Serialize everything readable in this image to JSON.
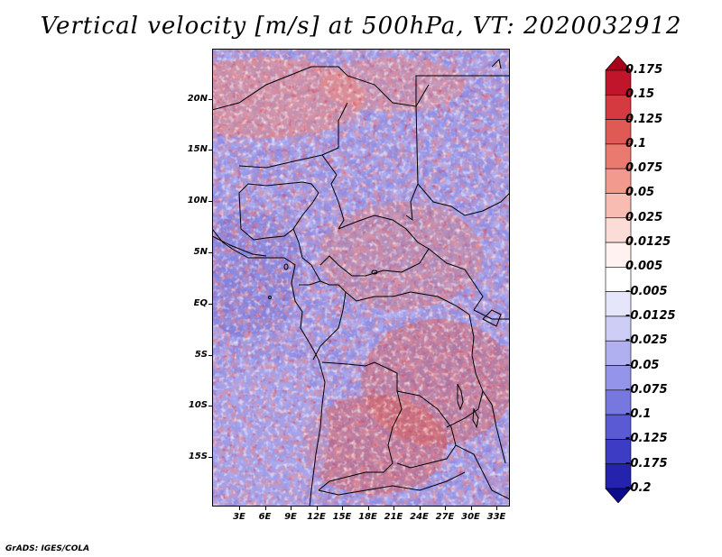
{
  "title": "Vertical velocity [m/s] at 500hPa, VT: 2020032912",
  "credit": "GrADS: IGES/COLA",
  "lat_labels": [
    "20N",
    "15N",
    "10N",
    "5N",
    "EQ",
    "5S",
    "10S",
    "15S"
  ],
  "lon_labels": [
    "3E",
    "6E",
    "9E",
    "12E",
    "15E",
    "18E",
    "21E",
    "24E",
    "27E",
    "30E",
    "33E"
  ],
  "colorbar": {
    "labels": [
      "0.175",
      "0.15",
      "0.125",
      "0.1",
      "0.075",
      "0.05",
      "0.025",
      "0.0125",
      "0.005",
      "-0.005",
      "-0.0125",
      "-0.025",
      "-0.05",
      "-0.075",
      "-0.1",
      "-0.125",
      "-0.175",
      "-0.2"
    ],
    "colors": [
      "#a6001a",
      "#c0152b",
      "#d43a3f",
      "#e05a55",
      "#ea7a70",
      "#f29a8e",
      "#f8bcb2",
      "#fcdcd6",
      "#fff2f0",
      "#ffffff",
      "#e6e6fb",
      "#cdcdf6",
      "#b0b0f0",
      "#9494ea",
      "#7777e0",
      "#5a5ad4",
      "#3c3cc4",
      "#2323ad",
      "#0c0c8c"
    ]
  },
  "map": {
    "ocean_color": "#8f8fe6",
    "land_border_color": "#000000"
  }
}
